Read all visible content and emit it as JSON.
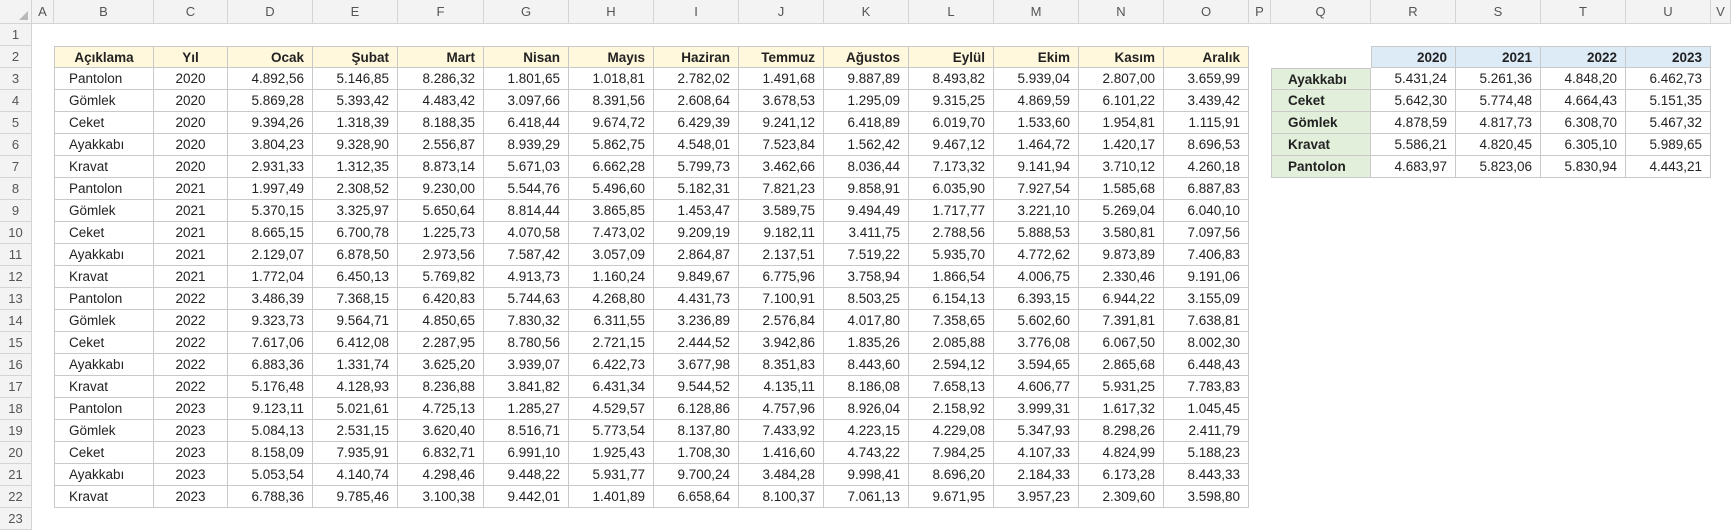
{
  "column_letters": [
    "A",
    "B",
    "C",
    "D",
    "E",
    "F",
    "G",
    "H",
    "I",
    "J",
    "K",
    "L",
    "M",
    "N",
    "O",
    "P",
    "Q",
    "R",
    "S",
    "T",
    "U",
    "V"
  ],
  "row_numbers": [
    "1",
    "2",
    "3",
    "4",
    "5",
    "6",
    "7",
    "8",
    "9",
    "10",
    "11",
    "12",
    "13",
    "14",
    "15",
    "16",
    "17",
    "18",
    "19",
    "20",
    "21",
    "22",
    "23"
  ],
  "main_table": {
    "headers": [
      "Açıklama",
      "Yıl",
      "Ocak",
      "Şubat",
      "Mart",
      "Nisan",
      "Mayıs",
      "Haziran",
      "Temmuz",
      "Ağustos",
      "Eylül",
      "Ekim",
      "Kasım",
      "Aralık"
    ],
    "rows": [
      [
        "Pantolon",
        "2020",
        "4.892,56",
        "5.146,85",
        "8.286,32",
        "1.801,65",
        "1.018,81",
        "2.782,02",
        "1.491,68",
        "9.887,89",
        "8.493,82",
        "5.939,04",
        "2.807,00",
        "3.659,99"
      ],
      [
        "Gömlek",
        "2020",
        "5.869,28",
        "5.393,42",
        "4.483,42",
        "3.097,66",
        "8.391,56",
        "2.608,64",
        "3.678,53",
        "1.295,09",
        "9.315,25",
        "4.869,59",
        "6.101,22",
        "3.439,42"
      ],
      [
        "Ceket",
        "2020",
        "9.394,26",
        "1.318,39",
        "8.188,35",
        "6.418,44",
        "9.674,72",
        "6.429,39",
        "9.241,12",
        "6.418,89",
        "6.019,70",
        "1.533,60",
        "1.954,81",
        "1.115,91"
      ],
      [
        "Ayakkabı",
        "2020",
        "3.804,23",
        "9.328,90",
        "2.556,87",
        "8.939,29",
        "5.862,75",
        "4.548,01",
        "7.523,84",
        "1.562,42",
        "9.467,12",
        "1.464,72",
        "1.420,17",
        "8.696,53"
      ],
      [
        "Kravat",
        "2020",
        "2.931,33",
        "1.312,35",
        "8.873,14",
        "5.671,03",
        "6.662,28",
        "5.799,73",
        "3.462,66",
        "8.036,44",
        "7.173,32",
        "9.141,94",
        "3.710,12",
        "4.260,18"
      ],
      [
        "Pantolon",
        "2021",
        "1.997,49",
        "2.308,52",
        "9.230,00",
        "5.544,76",
        "5.496,60",
        "5.182,31",
        "7.821,23",
        "9.858,91",
        "6.035,90",
        "7.927,54",
        "1.585,68",
        "6.887,83"
      ],
      [
        "Gömlek",
        "2021",
        "5.370,15",
        "3.325,97",
        "5.650,64",
        "8.814,44",
        "3.865,85",
        "1.453,47",
        "3.589,75",
        "9.494,49",
        "1.717,77",
        "3.221,10",
        "5.269,04",
        "6.040,10"
      ],
      [
        "Ceket",
        "2021",
        "8.665,15",
        "6.700,78",
        "1.225,73",
        "4.070,58",
        "7.473,02",
        "9.209,19",
        "9.182,11",
        "3.411,75",
        "2.788,56",
        "5.888,53",
        "3.580,81",
        "7.097,56"
      ],
      [
        "Ayakkabı",
        "2021",
        "2.129,07",
        "6.878,50",
        "2.973,56",
        "7.587,42",
        "3.057,09",
        "2.864,87",
        "2.137,51",
        "7.519,22",
        "5.935,70",
        "4.772,62",
        "9.873,89",
        "7.406,83"
      ],
      [
        "Kravat",
        "2021",
        "1.772,04",
        "6.450,13",
        "5.769,82",
        "4.913,73",
        "1.160,24",
        "9.849,67",
        "6.775,96",
        "3.758,94",
        "1.866,54",
        "4.006,75",
        "2.330,46",
        "9.191,06"
      ],
      [
        "Pantolon",
        "2022",
        "3.486,39",
        "7.368,15",
        "6.420,83",
        "5.744,63",
        "4.268,80",
        "4.431,73",
        "7.100,91",
        "8.503,25",
        "6.154,13",
        "6.393,15",
        "6.944,22",
        "3.155,09"
      ],
      [
        "Gömlek",
        "2022",
        "9.323,73",
        "9.564,71",
        "4.850,65",
        "7.830,32",
        "6.311,55",
        "3.236,89",
        "2.576,84",
        "4.017,80",
        "7.358,65",
        "5.602,60",
        "7.391,81",
        "7.638,81"
      ],
      [
        "Ceket",
        "2022",
        "7.617,06",
        "6.412,08",
        "2.287,95",
        "8.780,56",
        "2.721,15",
        "2.444,52",
        "3.942,86",
        "1.835,26",
        "2.085,88",
        "3.776,08",
        "6.067,50",
        "8.002,30"
      ],
      [
        "Ayakkabı",
        "2022",
        "6.883,36",
        "1.331,74",
        "3.625,20",
        "3.939,07",
        "6.422,73",
        "3.677,98",
        "8.351,83",
        "8.443,60",
        "2.594,12",
        "3.594,65",
        "2.865,68",
        "6.448,43"
      ],
      [
        "Kravat",
        "2022",
        "5.176,48",
        "4.128,93",
        "8.236,88",
        "3.841,82",
        "6.431,34",
        "9.544,52",
        "4.135,11",
        "8.186,08",
        "7.658,13",
        "4.606,77",
        "5.931,25",
        "7.783,83"
      ],
      [
        "Pantolon",
        "2023",
        "9.123,11",
        "5.021,61",
        "4.725,13",
        "1.285,27",
        "4.529,57",
        "6.128,86",
        "4.757,96",
        "8.926,04",
        "2.158,92",
        "3.999,31",
        "1.617,32",
        "1.045,45"
      ],
      [
        "Gömlek",
        "2023",
        "5.084,13",
        "2.531,15",
        "3.620,40",
        "8.516,71",
        "5.773,54",
        "8.137,80",
        "7.433,92",
        "4.223,15",
        "4.229,08",
        "5.347,93",
        "8.298,26",
        "2.411,79"
      ],
      [
        "Ceket",
        "2023",
        "8.158,09",
        "7.935,91",
        "6.832,71",
        "6.991,10",
        "1.925,43",
        "1.708,30",
        "1.416,60",
        "4.743,22",
        "7.984,25",
        "4.107,33",
        "4.824,99",
        "5.188,23"
      ],
      [
        "Ayakkabı",
        "2023",
        "5.053,54",
        "4.140,74",
        "4.298,46",
        "9.448,22",
        "5.931,77",
        "9.700,24",
        "3.484,28",
        "9.998,41",
        "8.696,20",
        "2.184,33",
        "6.173,28",
        "8.443,33"
      ],
      [
        "Kravat",
        "2023",
        "6.788,36",
        "9.785,46",
        "3.100,38",
        "9.442,01",
        "1.401,89",
        "6.658,64",
        "8.100,37",
        "7.061,13",
        "9.671,95",
        "3.957,23",
        "2.309,60",
        "3.598,80"
      ]
    ]
  },
  "pivot_table": {
    "years": [
      "2020",
      "2021",
      "2022",
      "2023"
    ],
    "rows": [
      {
        "label": "Ayakkabı",
        "values": [
          "5.431,24",
          "5.261,36",
          "4.848,20",
          "6.462,73"
        ]
      },
      {
        "label": "Ceket",
        "values": [
          "5.642,30",
          "5.774,48",
          "4.664,43",
          "5.151,35"
        ]
      },
      {
        "label": "Gömlek",
        "values": [
          "4.878,59",
          "4.817,73",
          "6.308,70",
          "5.467,32"
        ]
      },
      {
        "label": "Kravat",
        "values": [
          "5.586,21",
          "4.820,45",
          "6.305,10",
          "5.989,65"
        ]
      },
      {
        "label": "Pantolon",
        "values": [
          "4.683,97",
          "5.823,06",
          "5.830,94",
          "4.443,21"
        ]
      }
    ]
  },
  "colors": {
    "main_header_bg": "#fff8dc",
    "pivot_header_bg": "#ddebf7",
    "pivot_label_bg": "#e2efda"
  }
}
